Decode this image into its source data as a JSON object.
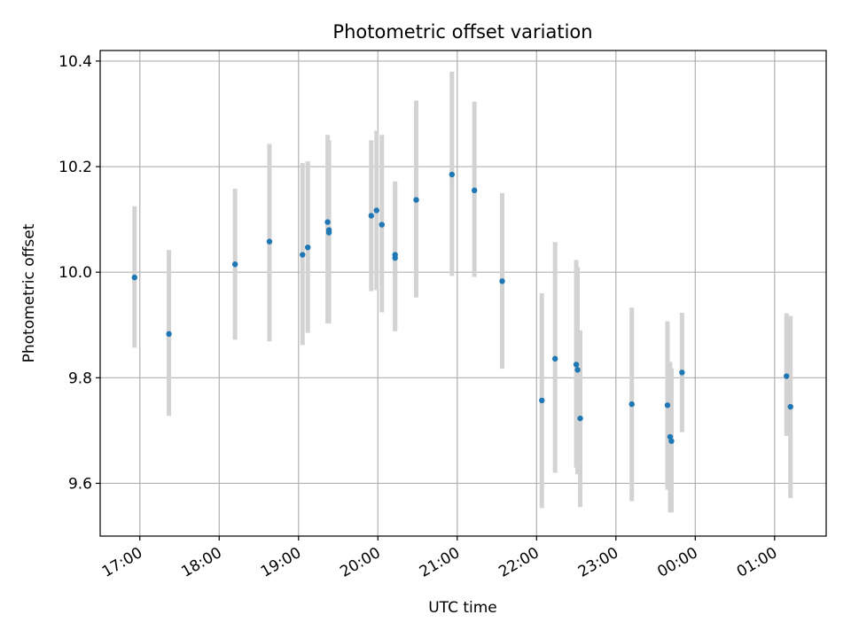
{
  "chart_data": {
    "type": "scatter",
    "title": "Photometric offset variation",
    "xlabel": "UTC time",
    "ylabel": "Photometric offset",
    "x_axis_type": "time",
    "x_range": [
      "16:30",
      "01:39"
    ],
    "ylim": [
      9.5,
      10.42
    ],
    "grid": true,
    "x_tick_labels": [
      "17:00",
      "18:00",
      "19:00",
      "20:00",
      "21:00",
      "22:00",
      "23:00",
      "00:00",
      "01:00"
    ],
    "x_tick_label_rotation": 30,
    "y_ticks": [
      9.6,
      9.8,
      10.0,
      10.2,
      10.4
    ],
    "y_tick_labels": [
      "9.6",
      "9.8",
      "10.0",
      "10.2",
      "10.4"
    ],
    "marker_color": "#1f77b4",
    "errorbar_color": "#d3d3d3",
    "points": [
      {
        "time": "16:56",
        "y": 9.99,
        "ylow": 9.857,
        "yhigh": 10.125
      },
      {
        "time": "17:22",
        "y": 9.883,
        "ylow": 9.728,
        "yhigh": 10.042
      },
      {
        "time": "18:12",
        "y": 10.015,
        "ylow": 9.872,
        "yhigh": 10.158
      },
      {
        "time": "18:38",
        "y": 10.058,
        "ylow": 9.869,
        "yhigh": 10.243
      },
      {
        "time": "19:03",
        "y": 10.033,
        "ylow": 9.862,
        "yhigh": 10.207
      },
      {
        "time": "19:07",
        "y": 10.047,
        "ylow": 9.885,
        "yhigh": 10.21
      },
      {
        "time": "19:22",
        "y": 10.095,
        "ylow": 9.903,
        "yhigh": 10.26
      },
      {
        "time": "19:23",
        "y": 10.08,
        "ylow": 9.903,
        "yhigh": 10.25
      },
      {
        "time": "19:23",
        "y": 10.075,
        "ylow": 9.903,
        "yhigh": 10.245
      },
      {
        "time": "19:55",
        "y": 10.107,
        "ylow": 9.964,
        "yhigh": 10.25
      },
      {
        "time": "19:59",
        "y": 10.117,
        "ylow": 9.966,
        "yhigh": 10.268
      },
      {
        "time": "20:03",
        "y": 10.09,
        "ylow": 9.924,
        "yhigh": 10.26
      },
      {
        "time": "20:13",
        "y": 10.033,
        "ylow": 9.888,
        "yhigh": 10.172
      },
      {
        "time": "20:13",
        "y": 10.027,
        "ylow": 9.89,
        "yhigh": 10.165
      },
      {
        "time": "20:29",
        "y": 10.137,
        "ylow": 9.952,
        "yhigh": 10.325
      },
      {
        "time": "20:56",
        "y": 10.185,
        "ylow": 9.993,
        "yhigh": 10.38
      },
      {
        "time": "21:13",
        "y": 10.155,
        "ylow": 9.991,
        "yhigh": 10.323
      },
      {
        "time": "21:34",
        "y": 9.983,
        "ylow": 9.817,
        "yhigh": 10.15
      },
      {
        "time": "22:04",
        "y": 9.757,
        "ylow": 9.553,
        "yhigh": 9.96
      },
      {
        "time": "22:14",
        "y": 9.836,
        "ylow": 9.62,
        "yhigh": 10.057
      },
      {
        "time": "22:30",
        "y": 9.825,
        "ylow": 9.63,
        "yhigh": 10.023
      },
      {
        "time": "22:31",
        "y": 9.815,
        "ylow": 9.617,
        "yhigh": 10.01
      },
      {
        "time": "22:33",
        "y": 9.723,
        "ylow": 9.555,
        "yhigh": 9.89
      },
      {
        "time": "23:12",
        "y": 9.75,
        "ylow": 9.566,
        "yhigh": 9.933
      },
      {
        "time": "23:39",
        "y": 9.748,
        "ylow": 9.588,
        "yhigh": 9.907
      },
      {
        "time": "23:41",
        "y": 9.688,
        "ylow": 9.545,
        "yhigh": 9.83
      },
      {
        "time": "23:42",
        "y": 9.68,
        "ylow": 9.545,
        "yhigh": 9.818
      },
      {
        "time": "23:50",
        "y": 9.81,
        "ylow": 9.697,
        "yhigh": 9.923
      },
      {
        "time": "01:09",
        "y": 9.803,
        "ylow": 9.69,
        "yhigh": 9.922
      },
      {
        "time": "01:12",
        "y": 9.745,
        "ylow": 9.572,
        "yhigh": 9.917
      }
    ]
  }
}
